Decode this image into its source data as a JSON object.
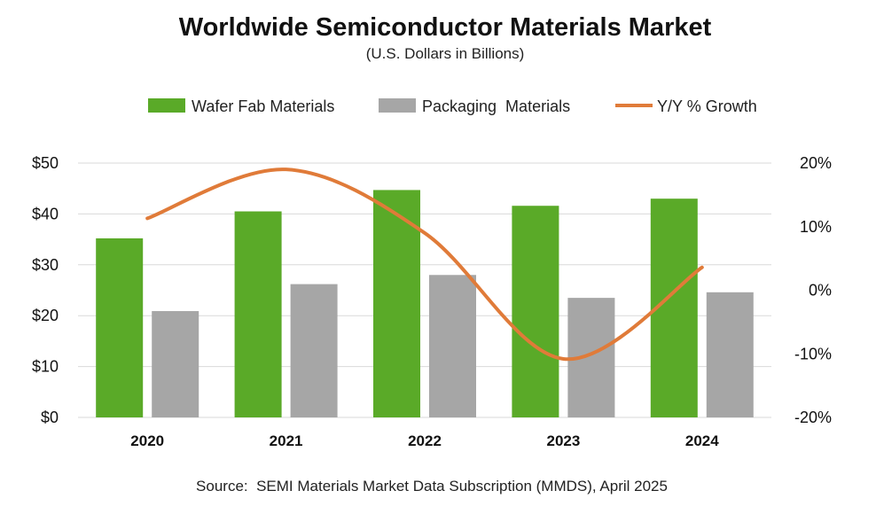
{
  "chart_data": {
    "type": "bar",
    "title": "Worldwide Semiconductor Materials Market",
    "subtitle": "(U.S. Dollars in Billions)",
    "source": "Source:  SEMI Materials Market Data Subscription (MMDS), April 2025",
    "categories": [
      "2020",
      "2021",
      "2022",
      "2023",
      "2024"
    ],
    "series": [
      {
        "name": "Wafer Fab Materials",
        "kind": "bar",
        "axis": "left",
        "color": "#5aaa28",
        "values": [
          35.2,
          40.5,
          44.7,
          41.6,
          43.0
        ]
      },
      {
        "name": "Packaging  Materials",
        "kind": "bar",
        "axis": "left",
        "color": "#a6a6a6",
        "values": [
          20.9,
          26.2,
          28.0,
          23.5,
          24.6
        ]
      },
      {
        "name": "Y/Y % Growth",
        "kind": "line",
        "axis": "right",
        "color": "#e07b39",
        "values": [
          11.3,
          19.0,
          9.0,
          -10.8,
          3.6
        ]
      }
    ],
    "y_left": {
      "ylim": [
        0,
        50
      ],
      "ticks": [
        0,
        10,
        20,
        30,
        40,
        50
      ],
      "tick_labels": [
        "$0",
        "$10",
        "$20",
        "$30",
        "$40",
        "$50"
      ]
    },
    "y_right": {
      "ylim": [
        -20,
        20
      ],
      "ticks": [
        -20,
        -10,
        0,
        10,
        20
      ],
      "tick_labels": [
        "-20%",
        "-10%",
        "0%",
        "10%",
        "20%"
      ]
    },
    "grid": true,
    "legend_position": "top-center",
    "line_smooth": true
  }
}
